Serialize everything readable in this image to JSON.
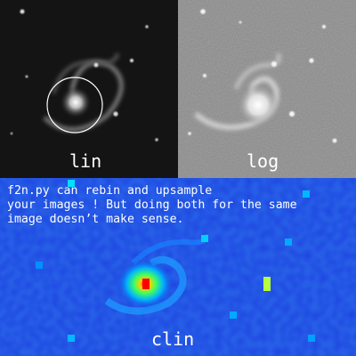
{
  "panels": {
    "lin": {
      "label": "lin"
    },
    "log": {
      "label": "log"
    },
    "clin": {
      "label": "clin"
    }
  },
  "caption": {
    "line1": "f2n.py can rebin and upsample",
    "line2": "your images ! But doing both for the same",
    "line3": "image doesn’t make sense."
  },
  "colors": {
    "lin_background": "#141414",
    "log_background": "#8a8a8a",
    "clin_background": "#1a3fe0",
    "circle": "#ffffff",
    "label_text": "#ffffff"
  },
  "icons": {
    "marker": "circle-marker"
  }
}
